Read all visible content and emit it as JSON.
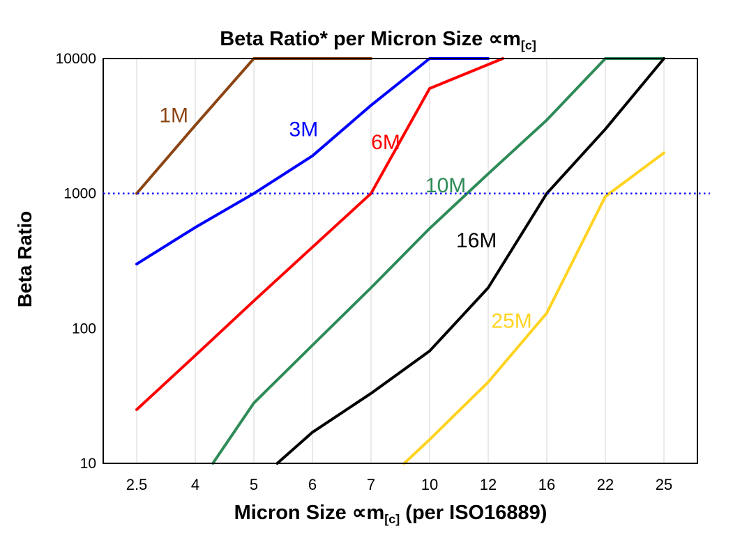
{
  "chart": {
    "title_main": "Beta Ratio* per Micron Size ∝m",
    "title_sub": "[c]",
    "y_label": "Beta Ratio",
    "x_label_main": "Micron Size ∝m",
    "x_label_sub": "[c]",
    "x_label_post": " (per ISO16889)"
  },
  "chart_data": {
    "type": "line",
    "title": "Beta Ratio* per Micron Size ∝m[c]",
    "xlabel": "Micron Size ∝m[c] (per ISO16889)",
    "ylabel": "Beta Ratio",
    "x_ticks": [
      2.5,
      4,
      5,
      6,
      7,
      10,
      12,
      16,
      22,
      25
    ],
    "y_ticks": [
      10,
      100,
      1000,
      10000
    ],
    "y_scale": "log",
    "ylim": [
      10,
      10000
    ],
    "grid": "vertical-only",
    "grid_color": "#d4d4d4",
    "border_color": "#000000",
    "reference_line": {
      "y": 1000,
      "color": "#0000ff",
      "style": "dotted"
    },
    "series": [
      {
        "name": "1M",
        "color": "#8b4513",
        "label_pos": [
          3.45,
          3800
        ],
        "points": [
          [
            2.5,
            1000
          ],
          [
            4,
            3200
          ],
          [
            5,
            10000
          ],
          [
            7,
            10000
          ]
        ]
      },
      {
        "name": "3M",
        "color": "#0000ff",
        "label_pos": [
          5.85,
          3000
        ],
        "points": [
          [
            2.5,
            300
          ],
          [
            4,
            560
          ],
          [
            5,
            1000
          ],
          [
            6,
            1900
          ],
          [
            7,
            4500
          ],
          [
            10,
            10000
          ],
          [
            12,
            10000
          ]
        ]
      },
      {
        "name": "6M",
        "color": "#ff0000",
        "label_pos": [
          7.75,
          2400
        ],
        "points": [
          [
            2.5,
            25
          ],
          [
            4,
            63
          ],
          [
            5,
            160
          ],
          [
            6,
            400
          ],
          [
            7,
            1000
          ],
          [
            10,
            6000
          ],
          [
            13,
            10000
          ]
        ]
      },
      {
        "name": "10M",
        "color": "#2e8b57",
        "label_pos": [
          10.55,
          1150
        ],
        "points": [
          [
            4.3,
            10
          ],
          [
            5,
            28
          ],
          [
            6,
            75
          ],
          [
            7,
            200
          ],
          [
            10,
            550
          ],
          [
            12,
            1400
          ],
          [
            16,
            3500
          ],
          [
            22,
            10000
          ],
          [
            25,
            10000
          ]
        ]
      },
      {
        "name": "16M",
        "color": "#000000",
        "label_pos": [
          11.6,
          450
        ],
        "points": [
          [
            5.4,
            10
          ],
          [
            6,
            17
          ],
          [
            7,
            33
          ],
          [
            10,
            68
          ],
          [
            12,
            200
          ],
          [
            16,
            1000
          ],
          [
            22,
            3000
          ],
          [
            25,
            10000
          ]
        ]
      },
      {
        "name": "25M",
        "color": "#ffd320",
        "label_pos": [
          13.6,
          114
        ],
        "points": [
          [
            8.7,
            10
          ],
          [
            10,
            15
          ],
          [
            12,
            40
          ],
          [
            16,
            130
          ],
          [
            22,
            950
          ],
          [
            25,
            2000
          ]
        ]
      }
    ]
  }
}
